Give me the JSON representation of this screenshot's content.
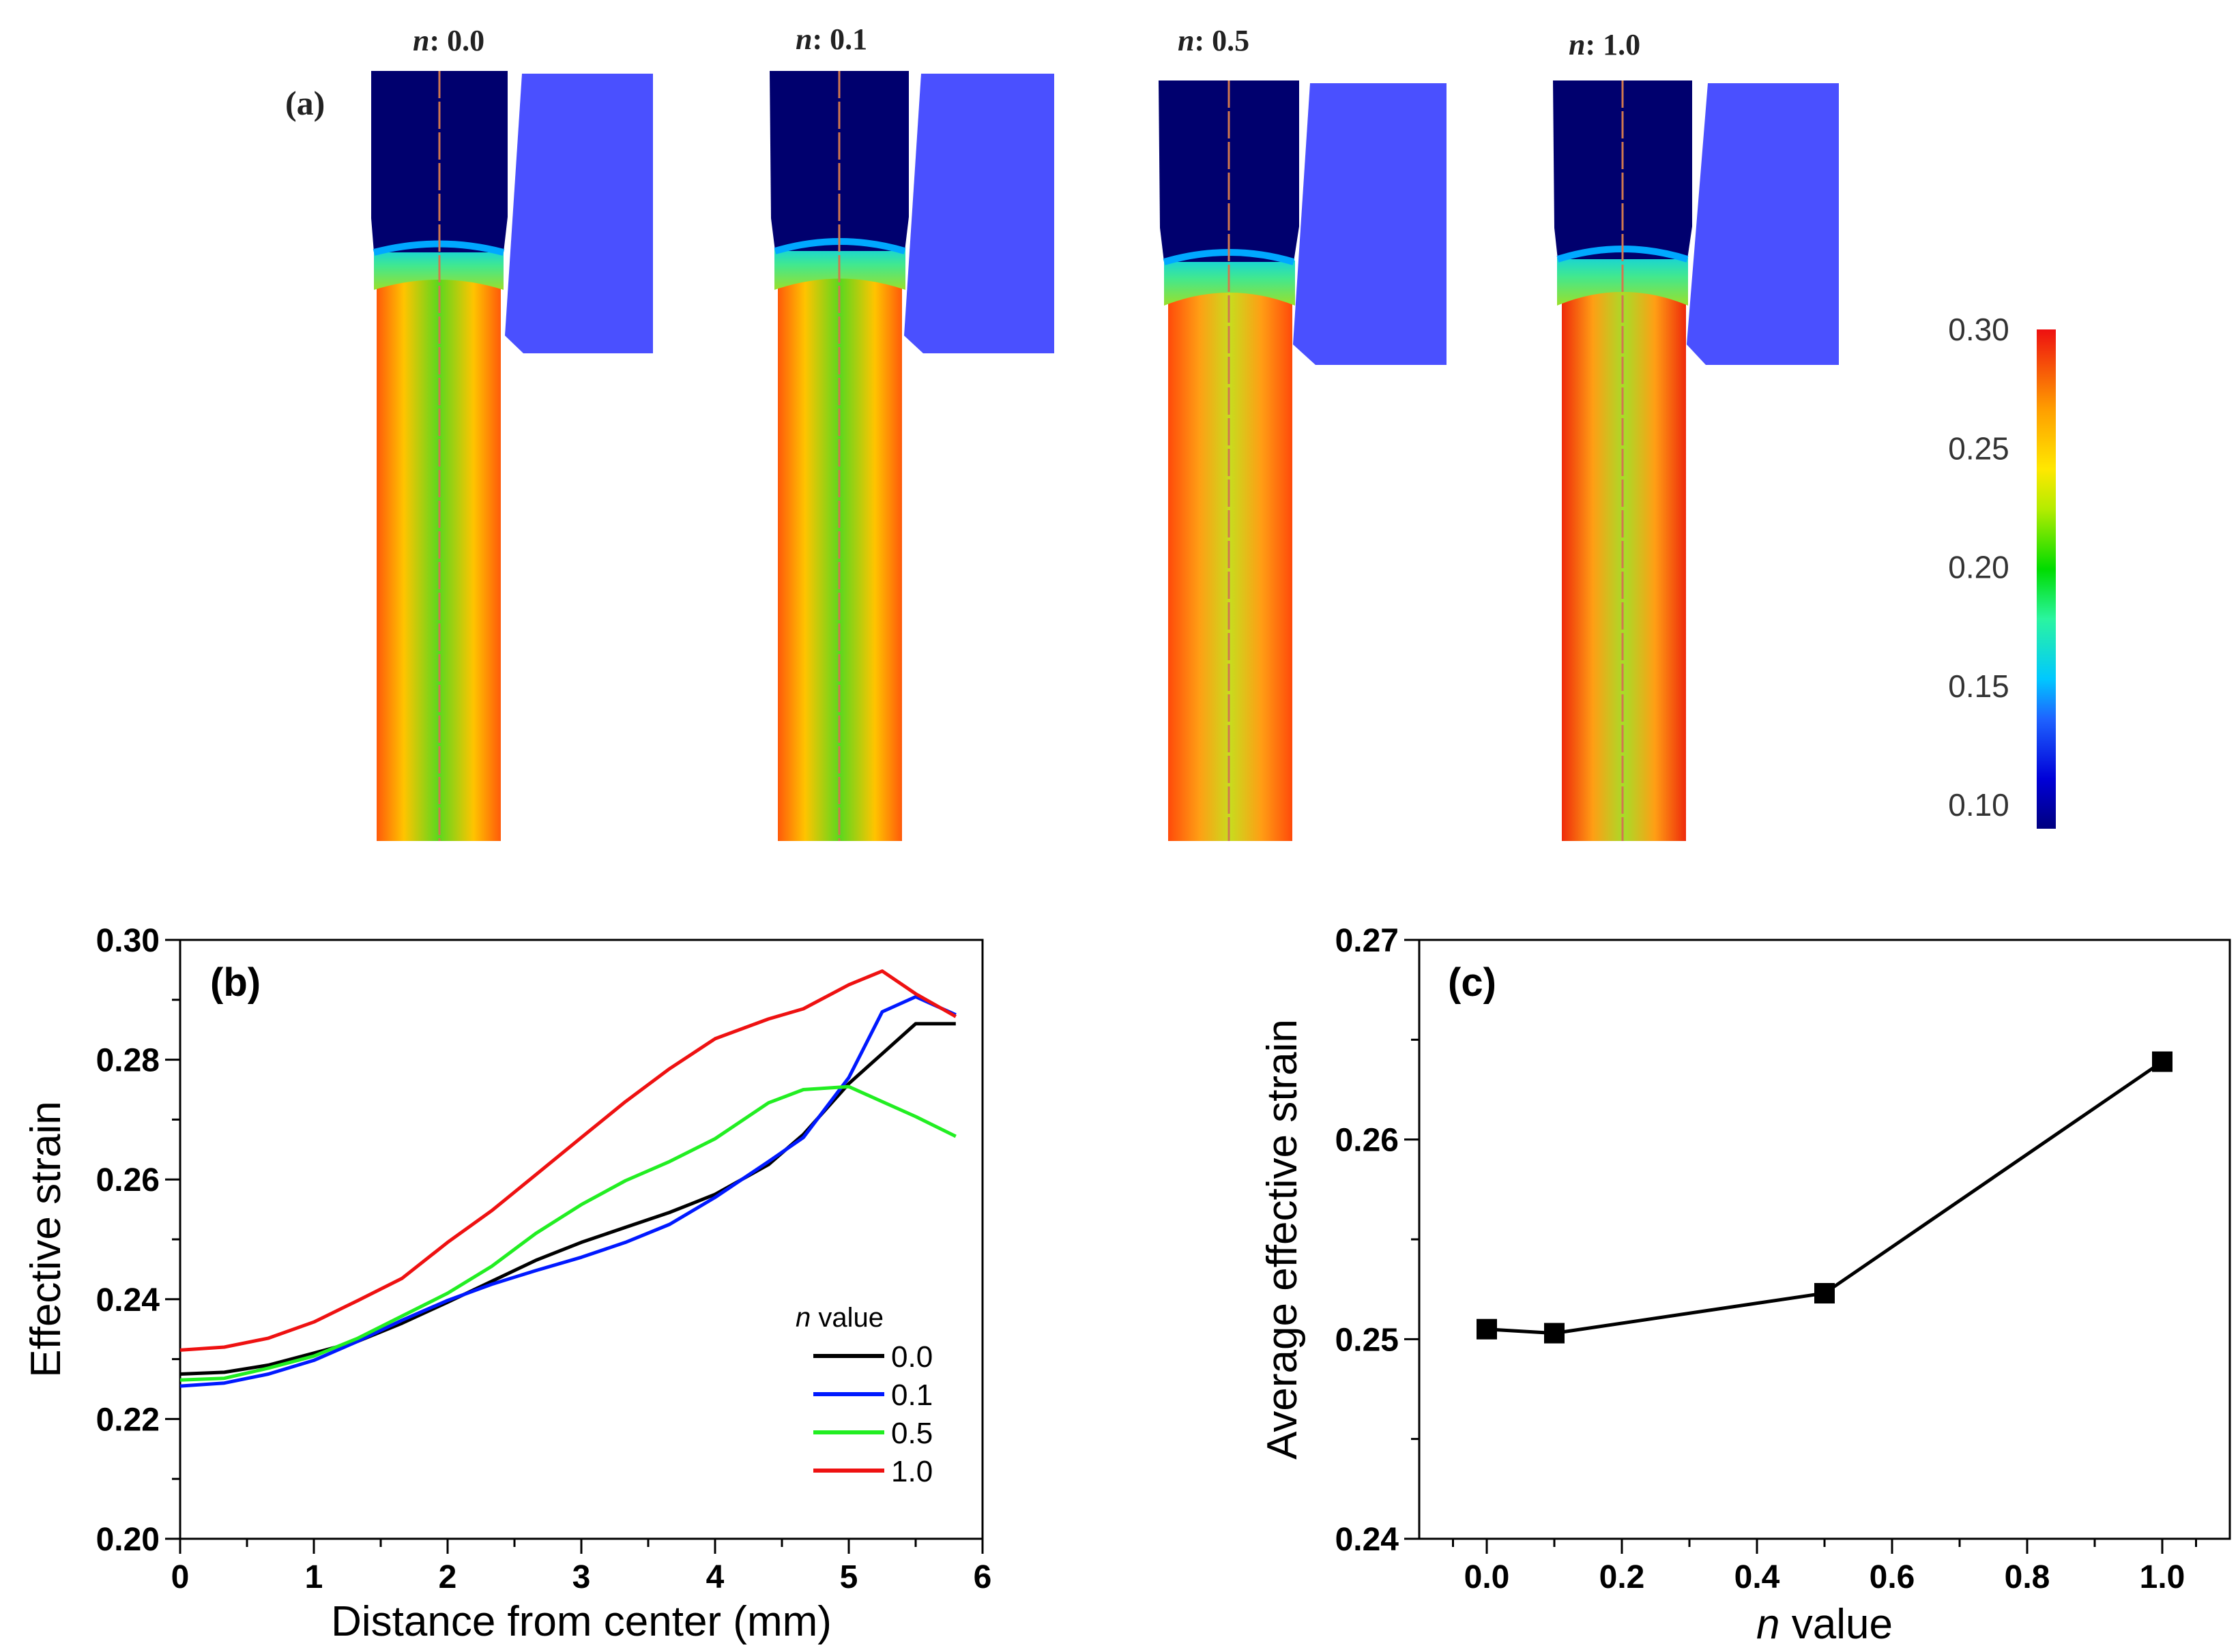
{
  "panel_a": {
    "label": "(a)",
    "n_prefix": "n",
    "panels": [
      {
        "n_label": "0.0"
      },
      {
        "n_label": "0.1"
      },
      {
        "n_label": "0.5"
      },
      {
        "n_label": "1.0"
      }
    ],
    "colorbar": {
      "ticks": [
        "0.30",
        "0.25",
        "0.20",
        "0.15",
        "0.10"
      ],
      "tick_values": [
        0.3,
        0.25,
        0.2,
        0.15,
        0.1
      ],
      "range": [
        0.09,
        0.3
      ]
    }
  },
  "chart_data": [
    {
      "id": "b",
      "type": "line",
      "panel_label": "(b)",
      "xlabel": "Distance from center (mm)",
      "ylabel": "Effective strain",
      "xlim": [
        0,
        6
      ],
      "ylim": [
        0.2,
        0.3
      ],
      "xticks": [
        "0",
        "1",
        "2",
        "3",
        "4",
        "5",
        "6"
      ],
      "yticks": [
        "0.20",
        "0.22",
        "0.24",
        "0.26",
        "0.28",
        "0.30"
      ],
      "legend_title_italic": "n",
      "legend_title_rest": " value",
      "legend_position": "lower-right",
      "series": [
        {
          "name": "0.0",
          "color": "#000000",
          "x": [
            0,
            0.33,
            0.66,
            1.0,
            1.33,
            1.66,
            2.0,
            2.33,
            2.66,
            3.0,
            3.33,
            3.66,
            4.0,
            4.4,
            4.66,
            5.0,
            5.25,
            5.5,
            5.8
          ],
          "y": [
            0.2275,
            0.2278,
            0.229,
            0.231,
            0.233,
            0.236,
            0.2395,
            0.243,
            0.2465,
            0.2495,
            0.252,
            0.2545,
            0.2575,
            0.2625,
            0.2675,
            0.276,
            0.281,
            0.286,
            0.286
          ]
        },
        {
          "name": "0.1",
          "color": "#0019ff",
          "x": [
            0,
            0.33,
            0.66,
            1.0,
            1.33,
            1.66,
            2.0,
            2.33,
            2.66,
            3.0,
            3.33,
            3.66,
            4.0,
            4.4,
            4.66,
            5.0,
            5.25,
            5.5,
            5.8
          ],
          "y": [
            0.2255,
            0.226,
            0.2275,
            0.2298,
            0.233,
            0.2365,
            0.2398,
            0.2425,
            0.2448,
            0.247,
            0.2495,
            0.2525,
            0.257,
            0.263,
            0.267,
            0.277,
            0.288,
            0.2905,
            0.2875
          ]
        },
        {
          "name": "0.5",
          "color": "#22ee22",
          "x": [
            0,
            0.33,
            0.66,
            1.0,
            1.33,
            1.66,
            2.0,
            2.33,
            2.66,
            3.0,
            3.33,
            3.66,
            4.0,
            4.4,
            4.66,
            5.0,
            5.25,
            5.5,
            5.8
          ],
          "y": [
            0.2265,
            0.2268,
            0.2285,
            0.2305,
            0.2335,
            0.2372,
            0.241,
            0.2455,
            0.251,
            0.2558,
            0.2598,
            0.263,
            0.2668,
            0.2728,
            0.275,
            0.2755,
            0.273,
            0.2705,
            0.2672
          ]
        },
        {
          "name": "1.0",
          "color": "#ee1111",
          "x": [
            0,
            0.33,
            0.66,
            1.0,
            1.33,
            1.66,
            2.0,
            2.33,
            2.66,
            3.0,
            3.33,
            3.66,
            4.0,
            4.4,
            4.66,
            5.0,
            5.25,
            5.5,
            5.8
          ],
          "y": [
            0.2315,
            0.232,
            0.2335,
            0.2362,
            0.2398,
            0.2435,
            0.2495,
            0.2548,
            0.2608,
            0.267,
            0.273,
            0.2785,
            0.2835,
            0.2868,
            0.2885,
            0.2925,
            0.2948,
            0.291,
            0.2872
          ]
        }
      ]
    },
    {
      "id": "c",
      "type": "line",
      "markers": "square",
      "panel_label": "(c)",
      "xlabel_italic": "n",
      "xlabel_rest": " value",
      "ylabel": "Average effective strain",
      "xlim": [
        -0.1,
        1.1
      ],
      "ylim": [
        0.24,
        0.27
      ],
      "xticks": [
        "0.0",
        "0.2",
        "0.4",
        "0.6",
        "0.8",
        "1.0"
      ],
      "yticks": [
        "0.24",
        "0.25",
        "0.26",
        "0.27"
      ],
      "series": [
        {
          "name": "Average effective strain",
          "color": "#000000",
          "x": [
            0.0,
            0.1,
            0.5,
            1.0
          ],
          "y": [
            0.2505,
            0.2503,
            0.2523,
            0.2639
          ]
        }
      ]
    }
  ]
}
